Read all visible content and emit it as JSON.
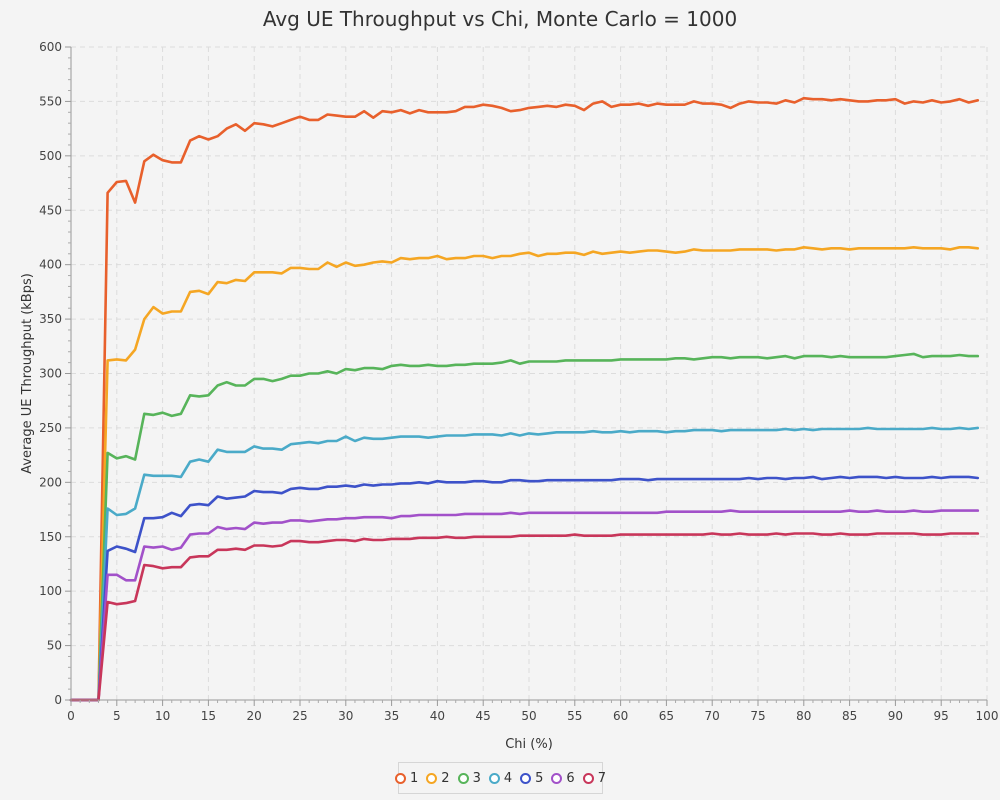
{
  "chart_data": {
    "type": "line",
    "title": "Avg UE Throughput vs Chi, Monte Carlo = 1000",
    "xlabel": "Chi (%)",
    "ylabel": "Average UE Throughput (kBps)",
    "xlim": [
      0,
      100
    ],
    "ylim": [
      0,
      600
    ],
    "xticks": [
      0,
      5,
      10,
      15,
      20,
      25,
      30,
      35,
      40,
      45,
      50,
      55,
      60,
      65,
      70,
      75,
      80,
      85,
      90,
      95,
      100
    ],
    "yticks": [
      0,
      50,
      100,
      150,
      200,
      250,
      300,
      350,
      400,
      450,
      500,
      550,
      600
    ],
    "grid": true,
    "legend_position": "bottom-center",
    "x": [
      0,
      1,
      2,
      3,
      4,
      5,
      6,
      7,
      8,
      9,
      10,
      11,
      12,
      13,
      14,
      15,
      16,
      17,
      18,
      19,
      20,
      21,
      22,
      23,
      24,
      25,
      26,
      27,
      28,
      29,
      30,
      31,
      32,
      33,
      34,
      35,
      36,
      37,
      38,
      39,
      40,
      41,
      42,
      43,
      44,
      45,
      46,
      47,
      48,
      49,
      50,
      51,
      52,
      53,
      54,
      55,
      56,
      57,
      58,
      59,
      60,
      61,
      62,
      63,
      64,
      65,
      66,
      67,
      68,
      69,
      70,
      71,
      72,
      73,
      74,
      75,
      76,
      77,
      78,
      79,
      80,
      81,
      82,
      83,
      84,
      85,
      86,
      87,
      88,
      89,
      90,
      91,
      92,
      93,
      94,
      95,
      96,
      97,
      98,
      99
    ],
    "series": [
      {
        "name": "1",
        "color": "#e8602c",
        "values": [
          0,
          0,
          0,
          0,
          466,
          476,
          477,
          457,
          495,
          501,
          496,
          494,
          494,
          514,
          518,
          515,
          518,
          525,
          529,
          523,
          530,
          529,
          527,
          530,
          533,
          536,
          533,
          533,
          538,
          537,
          536,
          536,
          541,
          535,
          541,
          540,
          542,
          539,
          542,
          540,
          540,
          540,
          541,
          545,
          545,
          547,
          546,
          544,
          541,
          542,
          544,
          545,
          546,
          545,
          547,
          546,
          542,
          548,
          550,
          545,
          547,
          547,
          548,
          546,
          548,
          547,
          547,
          547,
          550,
          548,
          548,
          547,
          544,
          548,
          550,
          549,
          549,
          548,
          551,
          549,
          553,
          552,
          552,
          551,
          552,
          551,
          550,
          550,
          551,
          551,
          552,
          548,
          550,
          549,
          551,
          549,
          550,
          552,
          549,
          551
        ]
      },
      {
        "name": "2",
        "color": "#f5a623",
        "values": [
          0,
          0,
          0,
          0,
          312,
          313,
          312,
          322,
          350,
          361,
          355,
          357,
          357,
          375,
          376,
          373,
          384,
          383,
          386,
          385,
          393,
          393,
          393,
          392,
          397,
          397,
          396,
          396,
          402,
          398,
          402,
          399,
          400,
          402,
          403,
          402,
          406,
          405,
          406,
          406,
          408,
          405,
          406,
          406,
          408,
          408,
          406,
          408,
          408,
          410,
          411,
          408,
          410,
          410,
          411,
          411,
          409,
          412,
          410,
          411,
          412,
          411,
          412,
          413,
          413,
          412,
          411,
          412,
          414,
          413,
          413,
          413,
          413,
          414,
          414,
          414,
          414,
          413,
          414,
          414,
          416,
          415,
          414,
          415,
          415,
          414,
          415,
          415,
          415,
          415,
          415,
          415,
          416,
          415,
          415,
          415,
          414,
          416,
          416,
          415
        ]
      },
      {
        "name": "3",
        "color": "#57b45a",
        "values": [
          0,
          0,
          0,
          0,
          227,
          222,
          224,
          221,
          263,
          262,
          264,
          261,
          263,
          280,
          279,
          280,
          289,
          292,
          289,
          289,
          295,
          295,
          293,
          295,
          298,
          298,
          300,
          300,
          302,
          300,
          304,
          303,
          305,
          305,
          304,
          307,
          308,
          307,
          307,
          308,
          307,
          307,
          308,
          308,
          309,
          309,
          309,
          310,
          312,
          309,
          311,
          311,
          311,
          311,
          312,
          312,
          312,
          312,
          312,
          312,
          313,
          313,
          313,
          313,
          313,
          313,
          314,
          314,
          313,
          314,
          315,
          315,
          314,
          315,
          315,
          315,
          314,
          315,
          316,
          314,
          316,
          316,
          316,
          315,
          316,
          315,
          315,
          315,
          315,
          315,
          316,
          317,
          318,
          315,
          316,
          316,
          316,
          317,
          316,
          316
        ]
      },
      {
        "name": "4",
        "color": "#4aaac8",
        "values": [
          0,
          0,
          0,
          0,
          176,
          170,
          171,
          176,
          207,
          206,
          206,
          206,
          205,
          219,
          221,
          219,
          230,
          228,
          228,
          228,
          233,
          231,
          231,
          230,
          235,
          236,
          237,
          236,
          238,
          238,
          242,
          238,
          241,
          240,
          240,
          241,
          242,
          242,
          242,
          241,
          242,
          243,
          243,
          243,
          244,
          244,
          244,
          243,
          245,
          243,
          245,
          244,
          245,
          246,
          246,
          246,
          246,
          247,
          246,
          246,
          247,
          246,
          247,
          247,
          247,
          246,
          247,
          247,
          248,
          248,
          248,
          247,
          248,
          248,
          248,
          248,
          248,
          248,
          249,
          248,
          249,
          248,
          249,
          249,
          249,
          249,
          249,
          250,
          249,
          249,
          249,
          249,
          249,
          249,
          250,
          249,
          249,
          250,
          249,
          250
        ]
      },
      {
        "name": "5",
        "color": "#3d52c9",
        "values": [
          0,
          0,
          0,
          0,
          137,
          141,
          139,
          136,
          167,
          167,
          168,
          172,
          169,
          179,
          180,
          179,
          187,
          185,
          186,
          187,
          192,
          191,
          191,
          190,
          194,
          195,
          194,
          194,
          196,
          196,
          197,
          196,
          198,
          197,
          198,
          198,
          199,
          199,
          200,
          199,
          201,
          200,
          200,
          200,
          201,
          201,
          200,
          200,
          202,
          202,
          201,
          201,
          202,
          202,
          202,
          202,
          202,
          202,
          202,
          202,
          203,
          203,
          203,
          202,
          203,
          203,
          203,
          203,
          203,
          203,
          203,
          203,
          203,
          203,
          204,
          203,
          204,
          204,
          203,
          204,
          204,
          205,
          203,
          204,
          205,
          204,
          205,
          205,
          205,
          204,
          205,
          204,
          204,
          204,
          205,
          204,
          205,
          205,
          205,
          204
        ]
      },
      {
        "name": "6",
        "color": "#a251c9",
        "values": [
          0,
          0,
          0,
          0,
          115,
          115,
          110,
          110,
          141,
          140,
          141,
          138,
          140,
          152,
          153,
          153,
          159,
          157,
          158,
          157,
          163,
          162,
          163,
          163,
          165,
          165,
          164,
          165,
          166,
          166,
          167,
          167,
          168,
          168,
          168,
          167,
          169,
          169,
          170,
          170,
          170,
          170,
          170,
          171,
          171,
          171,
          171,
          171,
          172,
          171,
          172,
          172,
          172,
          172,
          172,
          172,
          172,
          172,
          172,
          172,
          172,
          172,
          172,
          172,
          172,
          173,
          173,
          173,
          173,
          173,
          173,
          173,
          174,
          173,
          173,
          173,
          173,
          173,
          173,
          173,
          173,
          173,
          173,
          173,
          173,
          174,
          173,
          173,
          174,
          173,
          173,
          173,
          174,
          173,
          173,
          174,
          174,
          174,
          174,
          174
        ]
      },
      {
        "name": "7",
        "color": "#c8365a",
        "values": [
          0,
          0,
          0,
          0,
          90,
          88,
          89,
          91,
          124,
          123,
          121,
          122,
          122,
          131,
          132,
          132,
          138,
          138,
          139,
          138,
          142,
          142,
          141,
          142,
          146,
          146,
          145,
          145,
          146,
          147,
          147,
          146,
          148,
          147,
          147,
          148,
          148,
          148,
          149,
          149,
          149,
          150,
          149,
          149,
          150,
          150,
          150,
          150,
          150,
          151,
          151,
          151,
          151,
          151,
          151,
          152,
          151,
          151,
          151,
          151,
          152,
          152,
          152,
          152,
          152,
          152,
          152,
          152,
          152,
          152,
          153,
          152,
          152,
          153,
          152,
          152,
          152,
          153,
          152,
          153,
          153,
          153,
          152,
          152,
          153,
          152,
          152,
          152,
          153,
          153,
          153,
          153,
          153,
          152,
          152,
          152,
          153,
          153,
          153,
          153
        ]
      }
    ]
  }
}
